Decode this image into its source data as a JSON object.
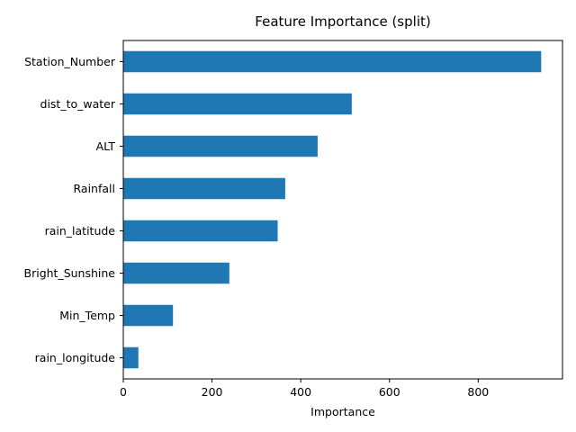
{
  "chart_data": {
    "type": "bar",
    "orientation": "horizontal",
    "title": "Feature Importance (split)",
    "xlabel": "Importance",
    "ylabel": "",
    "categories": [
      "rain_longitude",
      "Min_Temp",
      "Bright_Sunshine",
      "rain_latitude",
      "Rainfall",
      "ALT",
      "dist_to_water",
      "Station_Number"
    ],
    "values": [
      34,
      112,
      239,
      348,
      365,
      438,
      515,
      942
    ],
    "xlim": [
      0,
      990
    ],
    "xticks": [
      0,
      200,
      400,
      600,
      800
    ],
    "grid": false,
    "colors": {
      "bar": "#1f77b4"
    }
  }
}
